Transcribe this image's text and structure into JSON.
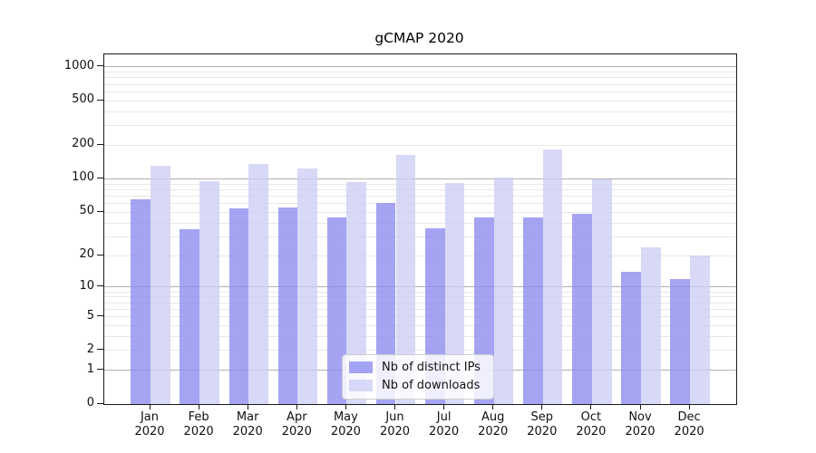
{
  "title": "gCMAP 2020",
  "chart_data": {
    "type": "bar",
    "title": "gCMAP 2020",
    "xlabel": "",
    "ylabel": "",
    "y_scale": "log1p",
    "grid": "horizontal",
    "legend_position": "lower center",
    "categories": [
      "Jan 2020",
      "Feb 2020",
      "Mar 2020",
      "Apr 2020",
      "May 2020",
      "Jun 2020",
      "Jul 2020",
      "Aug 2020",
      "Sep 2020",
      "Oct 2020",
      "Nov 2020",
      "Dec 2020"
    ],
    "series": [
      {
        "name": "Nb of distinct IPs",
        "color": "#a5a5f3",
        "base_color": "#8a8af0",
        "alpha": 0.78,
        "values": [
          66,
          35,
          54,
          55,
          45,
          61,
          36,
          45,
          45,
          48,
          14,
          12
        ]
      },
      {
        "name": "Nb of downloads",
        "color": "#d8d8f6",
        "base_color": "#cdcdf5",
        "alpha": 0.78,
        "values": [
          132,
          96,
          137,
          124,
          94,
          164,
          92,
          102,
          182,
          99,
          24,
          20
        ]
      }
    ],
    "y_tick_labels": [
      "1000",
      "500",
      "200",
      "100",
      "50",
      "20",
      "10",
      "5",
      "2",
      "1",
      "0"
    ],
    "y_tick_values": [
      1000,
      500,
      200,
      100,
      50,
      20,
      10,
      5,
      2,
      1,
      0
    ],
    "y_minor_gridline_values": [
      2,
      3,
      4,
      5,
      6,
      7,
      8,
      9,
      20,
      30,
      40,
      50,
      60,
      70,
      80,
      90,
      200,
      300,
      400,
      500,
      600,
      700,
      800,
      900
    ],
    "y_major_gridline_values": [
      1,
      10,
      100,
      1000
    ],
    "ylim": [
      0,
      1300
    ],
    "major_grid_color": "#b0b0b0",
    "minor_grid_color": "#e8e8e8"
  }
}
